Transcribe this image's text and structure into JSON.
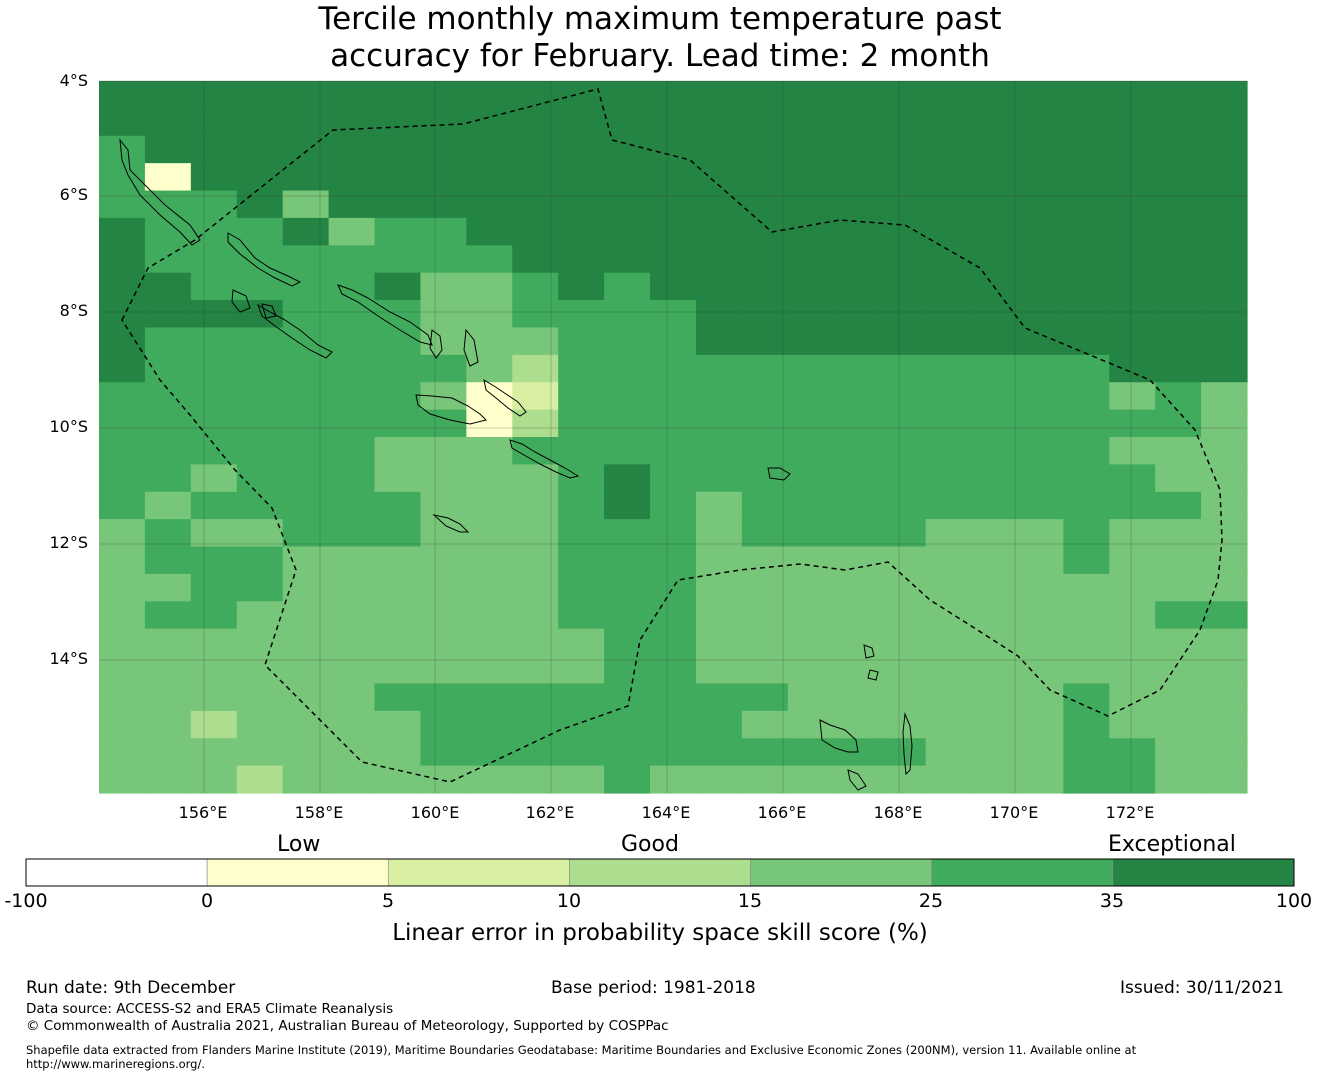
{
  "title": {
    "line1": "Tercile monthly maximum temperature past",
    "line2": "accuracy for February. Lead time: 2 month"
  },
  "map": {
    "lat_labels": [
      "4°S",
      "6°S",
      "8°S",
      "10°S",
      "12°S",
      "14°S"
    ],
    "lon_labels": [
      "156°E",
      "158°E",
      "160°E",
      "162°E",
      "164°E",
      "166°E",
      "168°E",
      "170°E",
      "172°E"
    ],
    "skill_grid_note_levels": [
      "-100 to 0",
      "0 to 5",
      "5 to 10",
      "10 to 15",
      "15 to 25",
      "25 to 35",
      "35 to 100"
    ],
    "grid_rows": [
      "7777777777777777777777777",
      "7777777777777777777777777",
      "6777777777777777777777777",
      "6177777777777777777777777",
      "6667477777777777777777777",
      "7666756677777777777777777",
      "7666666667777777777777777",
      "7766667556767777777777777",
      "7777666556666777777777777",
      "7666666554666777777777777",
      "7666666653666666666666777",
      "6666666512666666666666565",
      "6666666613666666666666665",
      "6666665556666666666666555",
      "6656665555676666666666655",
      "6566666555676566666666665",
      "5655666555666566665556555",
      "5666555555666555555556555",
      "5566555555666555554555555",
      "5665555555666555554455566",
      "5555555555566555555555555",
      "5555555555566555555555555",
      "5555556666666665555556555",
      "5435555666666655555556555",
      "5444555666666666665556655",
      "5443445555565555555556655"
    ],
    "colors": {
      "level0": "#ffffff",
      "level1": "#ffffcc",
      "level2": "#d9f0a3",
      "level3": "#addd8e",
      "level4": "#78c679",
      "level5": "#78c679",
      "level6": "#41ab5d",
      "level7": "#238443"
    }
  },
  "colorbar": {
    "categories": [
      "Low",
      "Good",
      "Exceptional"
    ],
    "ticks": [
      "-100",
      "0",
      "5",
      "10",
      "15",
      "25",
      "35",
      "100"
    ],
    "colors": [
      "#ffffff",
      "#ffffcc",
      "#d9f0a3",
      "#addd8e",
      "#78c679",
      "#41ab5d",
      "#238443"
    ],
    "title": "Linear error in probability space skill score (%)"
  },
  "footer": {
    "run_date": "Run date: 9th December",
    "base_period": "Base period: 1981-2018",
    "issued": "Issued: 30/11/2021",
    "data_source": "Data source: ACCESS-S2 and ERA5 Climate Reanalysis",
    "copyright": "© Commonwealth of Australia 2021, Australian Bureau of Meteorology, Supported by COSPPac",
    "shapefile_line1": "Shapefile data extracted from Flanders Marine Institute (2019), Maritime Boundaries Geodatabase: Maritime Boundaries and Exclusive Economic Zones (200NM), version 11. Available online at",
    "shapefile_line2": "http://www.marineregions.org/."
  }
}
